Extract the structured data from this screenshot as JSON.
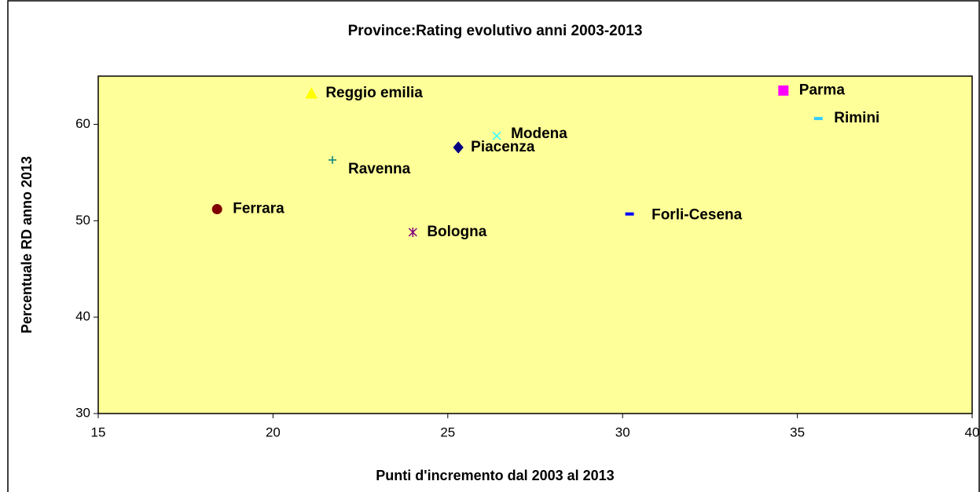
{
  "chart_data": {
    "type": "scatter",
    "title": "Province:Rating evolutivo anni 2003-2013",
    "x_label": "Punti d'incremento dal 2003 al 2013",
    "y_label": "Percentuale RD anno 2013",
    "xlim": [
      15,
      40
    ],
    "xticks": [
      15,
      20,
      25,
      30,
      35,
      40
    ],
    "ylim": [
      30,
      65
    ],
    "yticks": [
      30,
      40,
      50,
      60
    ],
    "series": [
      {
        "name": "Reggio emilia",
        "color": "#ffff00",
        "marker": "triangle",
        "x": [
          21.1
        ],
        "values": [
          63.2
        ]
      },
      {
        "name": "Parma",
        "color": "#ff00ff",
        "marker": "square",
        "x": [
          34.6
        ],
        "values": [
          63.5
        ]
      },
      {
        "name": "Rimini",
        "color": "#33ccff",
        "marker": "dash",
        "x": [
          35.6
        ],
        "values": [
          60.6
        ]
      },
      {
        "name": "Modena",
        "color": "#33ffff",
        "marker": "x",
        "x": [
          26.4
        ],
        "values": [
          58.8
        ]
      },
      {
        "name": "Piacenza",
        "color": "#000080",
        "marker": "diamond",
        "x": [
          25.3
        ],
        "values": [
          57.6
        ]
      },
      {
        "name": "Ravenna",
        "color": "#008080",
        "marker": "plus",
        "x": [
          21.7
        ],
        "values": [
          56.3
        ]
      },
      {
        "name": "Ferrara",
        "color": "#800000",
        "marker": "circle",
        "x": [
          18.4
        ],
        "values": [
          51.2
        ]
      },
      {
        "name": "Bologna",
        "color": "#800080",
        "marker": "star",
        "x": [
          24.0
        ],
        "values": [
          48.8
        ]
      },
      {
        "name": "Forli-Cesena",
        "color": "#0000ff",
        "marker": "dash",
        "x": [
          30.2
        ],
        "values": [
          50.7
        ]
      }
    ]
  }
}
